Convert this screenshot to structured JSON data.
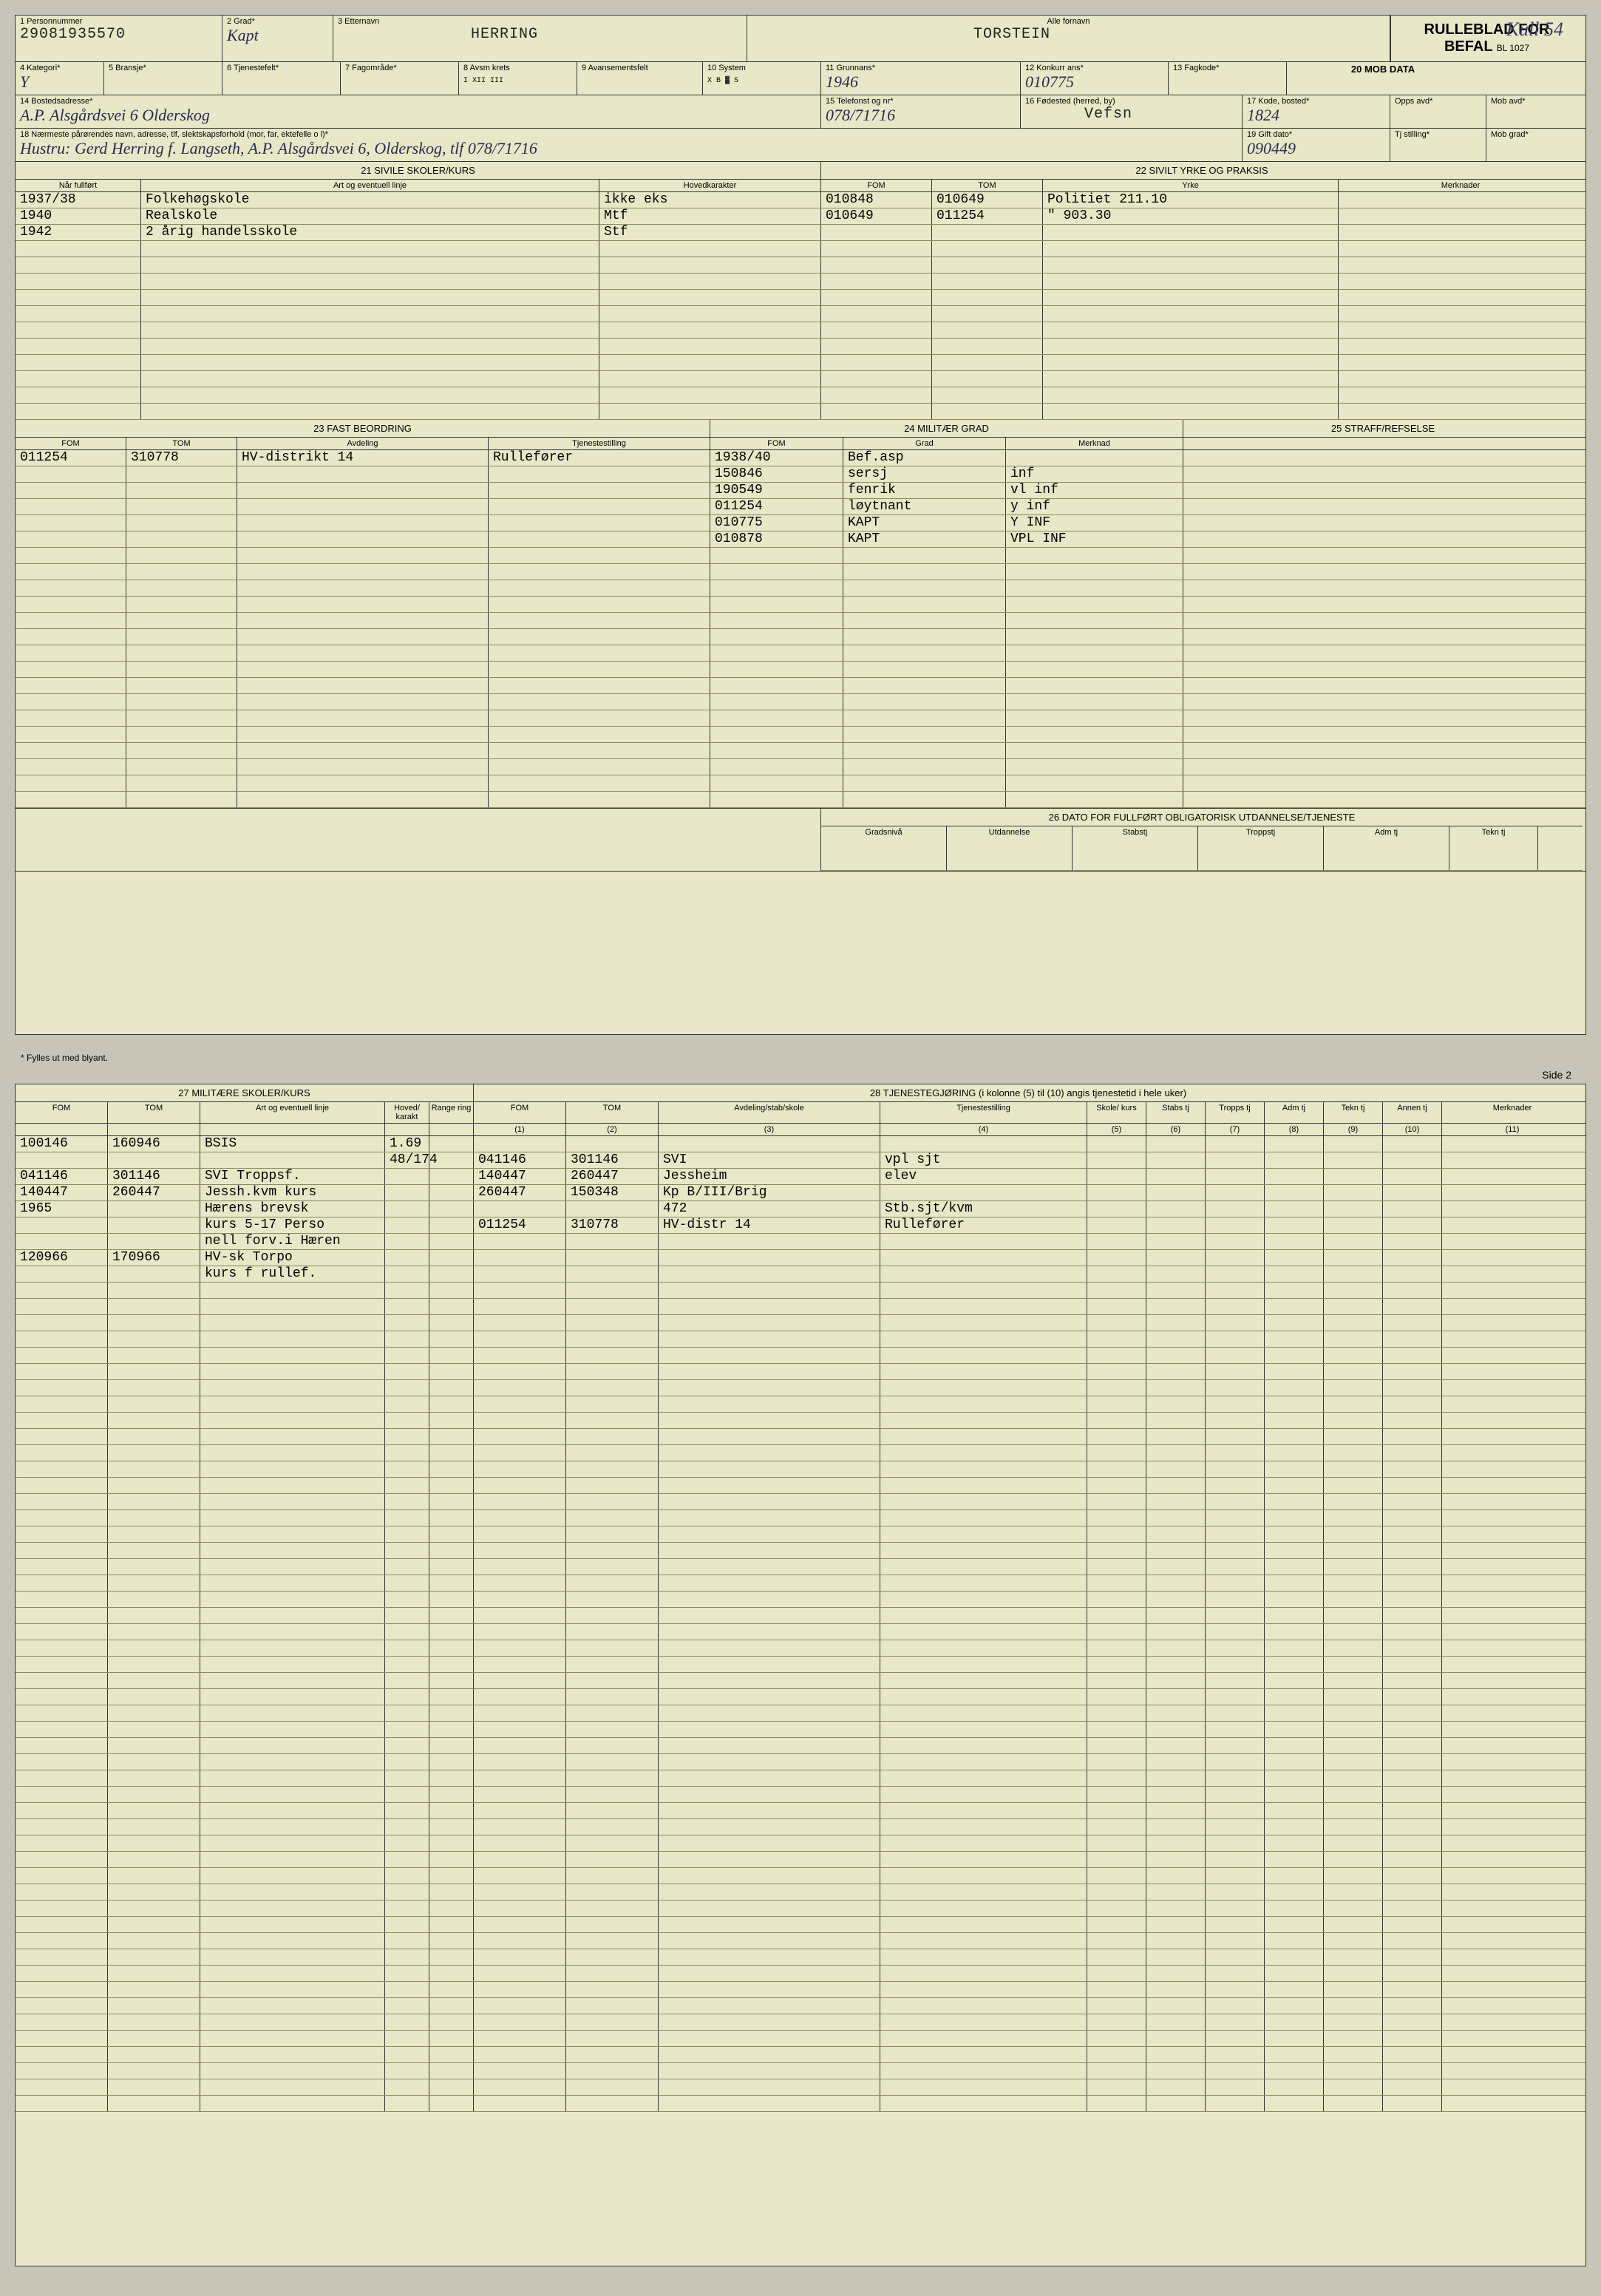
{
  "form": {
    "title1": "RULLEBLAD FOR",
    "title2": "BEFAL",
    "form_no": "BL 1027",
    "kull": "Kull 54",
    "footer": "* Fylles ut med blyant.",
    "side2": "Side 2"
  },
  "f1": {
    "label": "1 Personnummer",
    "value": "29081935570"
  },
  "f2": {
    "label": "2 Grad*",
    "value": "Kapt"
  },
  "f3": {
    "label": "3 Etternavn",
    "value": "HERRING"
  },
  "f3b": {
    "label": "Alle fornavn",
    "value": "TORSTEIN"
  },
  "f4": {
    "label": "4 Kategori*",
    "value": "Y"
  },
  "f5": {
    "label": "5 Bransje*",
    "value": ""
  },
  "f6": {
    "label": "6 Tjenestefelt*",
    "value": ""
  },
  "f7": {
    "label": "7 Fagområde*",
    "value": ""
  },
  "f8": {
    "label": "8 Avsm krets",
    "value": "I  XII  III"
  },
  "f9": {
    "label": "9 Avansementsfelt",
    "value": ""
  },
  "f10": {
    "label": "10 System",
    "value": "X B ▓ S"
  },
  "f11": {
    "label": "11 Grunnans*",
    "value": "1946"
  },
  "f12": {
    "label": "12 Konkurr ans*",
    "value": "010775"
  },
  "f13": {
    "label": "13 Fagkode*",
    "value": ""
  },
  "f13b": {
    "label": "20 MOB DATA",
    "value": ""
  },
  "f14": {
    "label": "14 Bostedsadresse*",
    "value": "A.P. Alsgårdsvei 6 Olderskog"
  },
  "f15": {
    "label": "15 Telefonst og nr*",
    "value": "078/71716"
  },
  "f16": {
    "label": "16 Fødested (herred, by)",
    "value": "Vefsn"
  },
  "f17": {
    "label": "17 Kode, bosted*",
    "value": "1824"
  },
  "f17b": {
    "label": "Opps avd*",
    "value": ""
  },
  "f17c": {
    "label": "Mob avd*",
    "value": ""
  },
  "f18": {
    "label": "18 Nærmeste pårørendes navn, adresse, tlf, slektskapsforhold (mor, far, ektefelle o l)*",
    "value": "Hustru: Gerd Herring f. Langseth,  A.P. Alsgårdsvei 6, Olderskog, tlf 078/71716"
  },
  "f19": {
    "label": "19 Gift dato*",
    "value": "090449"
  },
  "f19b": {
    "label": "Tj stilling*",
    "value": ""
  },
  "f19c": {
    "label": "Mob grad*",
    "value": ""
  },
  "s21": {
    "title": "21 SIVILE SKOLER/KURS",
    "h1": "Når fullført",
    "h2": "Art og eventuell linje",
    "h3": "Hovedkarakter"
  },
  "s22": {
    "title": "22 SIVILT YRKE OG PRAKSIS",
    "h1": "FOM",
    "h2": "TOM",
    "h3": "Yrke",
    "h4": "Merknader"
  },
  "s21rows": [
    {
      "c1": "1937/38",
      "c2": "Folkehøgskole",
      "c3": "ikke eks"
    },
    {
      "c1": "1940",
      "c2": "Realskole",
      "c3": "Mtf"
    },
    {
      "c1": "1942",
      "c2": "2 årig handelsskole",
      "c3": "Stf"
    }
  ],
  "s22rows": [
    {
      "c1": "010848",
      "c2": "010649",
      "c3": "Politiet 211.10",
      "c4": ""
    },
    {
      "c1": "010649",
      "c2": "011254",
      "c3": "   \"    903.30",
      "c4": ""
    }
  ],
  "s23": {
    "title": "23 FAST BEORDRING",
    "h1": "FOM",
    "h2": "TOM",
    "h3": "Avdeling",
    "h4": "Tjenestestilling"
  },
  "s24": {
    "title": "24 MILITÆR GRAD",
    "h1": "FOM",
    "h2": "Grad",
    "h3": "Merknad"
  },
  "s25": {
    "title": "25 STRAFF/REFSELSE"
  },
  "s23rows": [
    {
      "c1": "011254",
      "c2": "310778",
      "c3": "HV-distrikt 14",
      "c4": "Rullefører"
    }
  ],
  "s24rows": [
    {
      "c1": "1938/40",
      "c2": "Bef.asp",
      "c3": ""
    },
    {
      "c1": "150846",
      "c2": "sersj",
      "c3": "inf"
    },
    {
      "c1": "190549",
      "c2": "fenrik",
      "c3": "vl inf"
    },
    {
      "c1": "011254",
      "c2": "løytnant",
      "c3": "y inf"
    },
    {
      "c1": "010775",
      "c2": "KAPT",
      "c3": "Y   INF"
    },
    {
      "c1": "010878",
      "c2": "KAPT",
      "c3": "VPL  INF"
    }
  ],
  "s26": {
    "title": "26 DATO FOR FULLFØRT OBLIGATORISK UTDANNELSE/TJENESTE",
    "h1": "Gradsnivå",
    "h2": "Utdannelse",
    "h3": "Stabstj",
    "h4": "Troppstj",
    "h5": "Adm tj",
    "h6": "Tekn tj"
  },
  "s27": {
    "title": "27 MILITÆRE SKOLER/KURS",
    "h1": "FOM",
    "h2": "TOM",
    "h3": "Art og eventuell linje",
    "h4": "Hoved/ karakt",
    "h5": "Range ring"
  },
  "s28": {
    "title": "28 TJENESTEGJØRING (i kolonne (5) til (10) angis tjenestetid i hele uker)",
    "h1": "FOM",
    "h2": "TOM",
    "h3": "Avdeling/stab/skole",
    "h4": "Tjenestestilling",
    "h5": "Skole/ kurs",
    "h6": "Stabs tj",
    "h7": "Tropps tj",
    "h8": "Adm tj",
    "h9": "Tekn tj",
    "h10": "Annen tj",
    "h11": "Merknader",
    "n1": "(1)",
    "n2": "(2)",
    "n3": "(3)",
    "n4": "(4)",
    "n5": "(5)",
    "n6": "(6)",
    "n7": "(7)",
    "n8": "(8)",
    "n9": "(9)",
    "n10": "(10)",
    "n11": "(11)"
  },
  "s27rows": [
    {
      "c1": "100146",
      "c2": "160946",
      "c3": "BSIS",
      "c4": "1.69",
      "c5": ""
    },
    {
      "c1": "",
      "c2": "",
      "c3": "",
      "c4": "48/174",
      "c5": ""
    },
    {
      "c1": "041146",
      "c2": "301146",
      "c3": "SVI Troppsf.",
      "c4": "",
      "c5": ""
    },
    {
      "c1": "140447",
      "c2": "260447",
      "c3": "Jessh.kvm kurs",
      "c4": "",
      "c5": ""
    },
    {
      "c1": "1965",
      "c2": "",
      "c3": "Hærens brevsk",
      "c4": "",
      "c5": ""
    },
    {
      "c1": "",
      "c2": "",
      "c3": "kurs 5-17 Perso",
      "c4": "",
      "c5": ""
    },
    {
      "c1": "",
      "c2": "",
      "c3": "nell forv.i Hæren",
      "c4": "",
      "c5": ""
    },
    {
      "c1": "120966",
      "c2": "170966",
      "c3": "HV-sk Torpo",
      "c4": "",
      "c5": ""
    },
    {
      "c1": "",
      "c2": "",
      "c3": "kurs f rullef.",
      "c4": "",
      "c5": ""
    }
  ],
  "s28rows": [
    {
      "c1": "",
      "c2": "",
      "c3": "",
      "c4": "",
      "c5": "",
      "c6": "",
      "c7": "",
      "c8": "",
      "c9": "",
      "c10": "",
      "c11": ""
    },
    {
      "c1": "041146",
      "c2": "301146",
      "c3": "SVI",
      "c4": "vpl sjt",
      "c5": "",
      "c6": "",
      "c7": "",
      "c8": "",
      "c9": "",
      "c10": "",
      "c11": ""
    },
    {
      "c1": "140447",
      "c2": "260447",
      "c3": "Jessheim",
      "c4": "elev",
      "c5": "",
      "c6": "",
      "c7": "",
      "c8": "",
      "c9": "",
      "c10": "",
      "c11": ""
    },
    {
      "c1": "260447",
      "c2": "150348",
      "c3": "Kp B/III/Brig",
      "c4": "",
      "c5": "",
      "c6": "",
      "c7": "",
      "c8": "",
      "c9": "",
      "c10": "",
      "c11": ""
    },
    {
      "c1": "",
      "c2": "",
      "c3": "472",
      "c4": "Stb.sjt/kvm",
      "c5": "",
      "c6": "",
      "c7": "",
      "c8": "",
      "c9": "",
      "c10": "",
      "c11": ""
    },
    {
      "c1": "011254",
      "c2": "310778",
      "c3": "HV-distr 14",
      "c4": "Rullefører",
      "c5": "",
      "c6": "",
      "c7": "",
      "c8": "",
      "c9": "",
      "c10": "",
      "c11": ""
    }
  ],
  "colors": {
    "paper": "#e8e8c8",
    "line": "#333333",
    "faint": "#8a8a5a",
    "ink": "#2a2a50"
  }
}
